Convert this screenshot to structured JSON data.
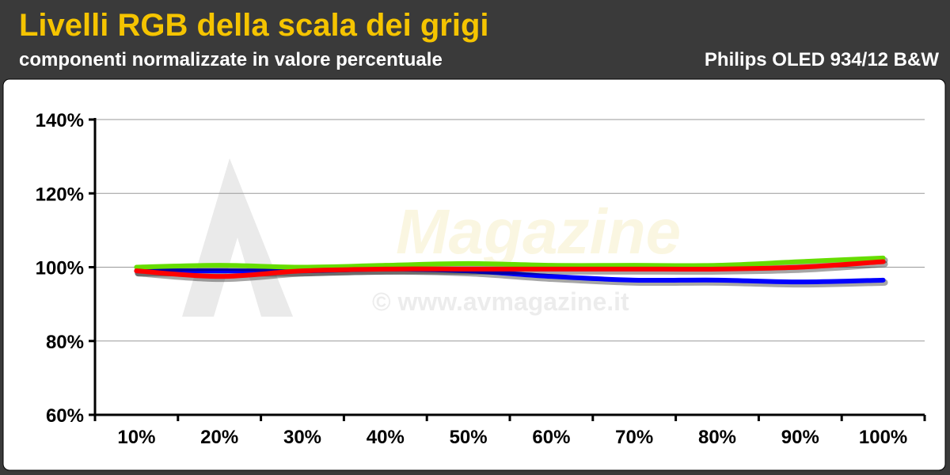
{
  "header": {
    "title": "Livelli RGB della scala dei grigi",
    "subtitle": "componenti normalizzate in valore percentuale",
    "product": "Philips OLED 934/12 B&W"
  },
  "watermark": {
    "text": "Magazine",
    "copyright": "© www.avmagazine.it"
  },
  "colors": {
    "background": "#3a3a3a",
    "title": "#f5c400",
    "grid": "#9a9a9a"
  },
  "chart_data": {
    "type": "line",
    "categories": [
      "10%",
      "20%",
      "30%",
      "40%",
      "50%",
      "60%",
      "70%",
      "80%",
      "90%",
      "100%"
    ],
    "ylim": [
      60,
      140
    ],
    "yticks": [
      60,
      80,
      100,
      120,
      140
    ],
    "ytick_labels": [
      "60%",
      "80%",
      "100%",
      "120%",
      "140%"
    ],
    "grid": true,
    "series": [
      {
        "color": "#0000ff",
        "values": [
          99,
          99,
          99,
          99.5,
          99,
          97.5,
          96.5,
          96.5,
          96,
          96.5
        ]
      },
      {
        "color": "#66dd00",
        "values": [
          100,
          100.5,
          100,
          100.5,
          101,
          100.5,
          100.5,
          100.5,
          101.5,
          102.5
        ]
      },
      {
        "color": "#ff0000",
        "values": [
          99,
          97.5,
          99,
          99.5,
          99.5,
          99.5,
          99.5,
          99.5,
          100,
          101.5
        ]
      }
    ]
  }
}
